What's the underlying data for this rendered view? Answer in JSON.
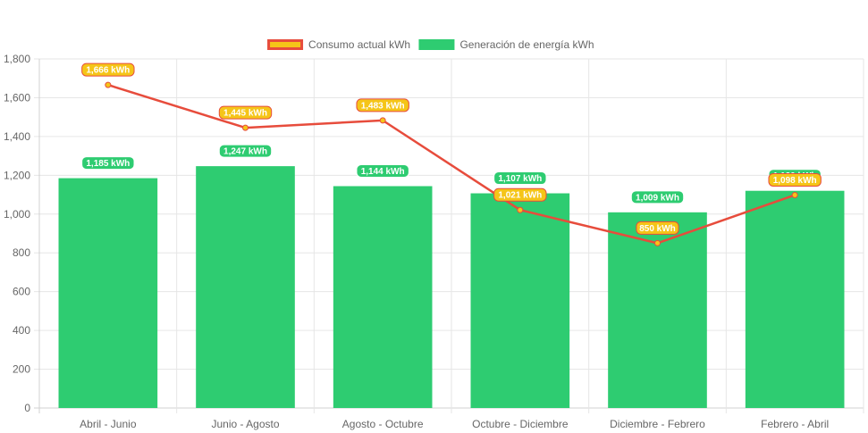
{
  "chart_data": {
    "type": "bar",
    "categories": [
      "Abril - Junio",
      "Junio - Agosto",
      "Agosto - Octubre",
      "Octubre - Diciembre",
      "Diciembre - Febrero",
      "Febrero - Abril"
    ],
    "series": [
      {
        "name": "Generación de energía kWh",
        "type": "bar",
        "color": "#2ecc71",
        "values": [
          1185,
          1247,
          1144,
          1107,
          1009,
          1120
        ],
        "labels": [
          "1,185 kWh",
          "1,247 kWh",
          "1,144 kWh",
          "1,107 kWh",
          "1,009 kWh",
          "1,120 kWh"
        ]
      },
      {
        "name": "Consumo actual kWh",
        "type": "line",
        "color": "#f5c518",
        "border_color": "#e74c3c",
        "values": [
          1666,
          1445,
          1483,
          1021,
          850,
          1098
        ],
        "labels": [
          "1,666 kWh",
          "1,445 kWh",
          "1,483 kWh",
          "1,021 kWh",
          "850 kWh",
          "1,098 kWh"
        ]
      }
    ],
    "legend_order": [
      "Consumo actual kWh",
      "Generación de energía kWh"
    ],
    "legend_position": "top-center",
    "ylim": [
      0,
      1800
    ],
    "yticks": [
      0,
      200,
      400,
      600,
      800,
      1000,
      1200,
      1400,
      1600,
      1800
    ],
    "ytick_labels": [
      "0",
      "200",
      "400",
      "600",
      "800",
      "1,000",
      "1,200",
      "1,400",
      "1,600",
      "1,800"
    ],
    "grid": true,
    "title": "",
    "xlabel": "",
    "ylabel": ""
  }
}
